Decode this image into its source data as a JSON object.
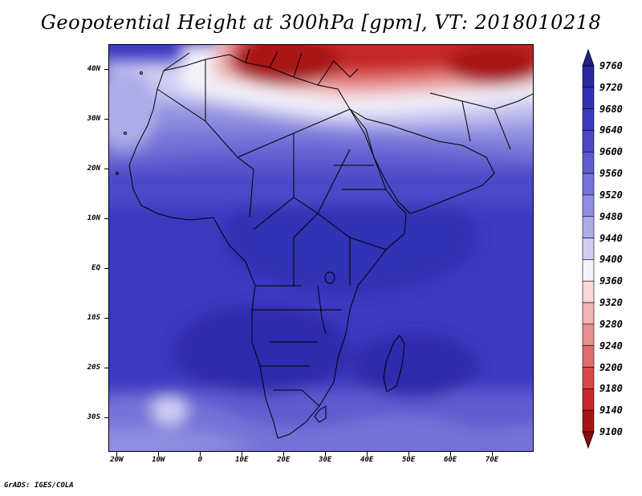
{
  "title": "Geopotential Height at 300hPa [gpm], VT: 2018010218",
  "footer": "GrADS: IGES/COLA",
  "map": {
    "lon_range": [
      -22,
      80
    ],
    "lat_range": [
      -37,
      45
    ],
    "lat_ticks": [
      {
        "value": 40,
        "label": "40N"
      },
      {
        "value": 30,
        "label": "30N"
      },
      {
        "value": 20,
        "label": "20N"
      },
      {
        "value": 10,
        "label": "10N"
      },
      {
        "value": 0,
        "label": "EQ"
      },
      {
        "value": -10,
        "label": "10S"
      },
      {
        "value": -20,
        "label": "20S"
      },
      {
        "value": -30,
        "label": "30S"
      }
    ],
    "lon_ticks": [
      {
        "value": -20,
        "label": "20W"
      },
      {
        "value": -10,
        "label": "10W"
      },
      {
        "value": 0,
        "label": "0"
      },
      {
        "value": 10,
        "label": "10E"
      },
      {
        "value": 20,
        "label": "20E"
      },
      {
        "value": 30,
        "label": "30E"
      },
      {
        "value": 40,
        "label": "40E"
      },
      {
        "value": 50,
        "label": "50E"
      },
      {
        "value": 60,
        "label": "60E"
      },
      {
        "value": 70,
        "label": "70E"
      }
    ]
  },
  "colorbar": {
    "levels": [
      "9760",
      "9720",
      "9680",
      "9640",
      "9600",
      "9560",
      "9520",
      "9480",
      "9440",
      "9400",
      "9360",
      "9320",
      "9280",
      "9240",
      "9200",
      "9180",
      "9140",
      "9100"
    ],
    "colors": [
      "#232084",
      "#2a27a0",
      "#3330b4",
      "#3d3ac0",
      "#4b48c8",
      "#5f5cd0",
      "#7673d8",
      "#908ee0",
      "#aeace8",
      "#cfcef2",
      "#f3f2fb",
      "#f8d8d8",
      "#f0b4b4",
      "#e89090",
      "#e06c6c",
      "#d84848",
      "#c62828",
      "#a81414",
      "#8a0808"
    ]
  }
}
